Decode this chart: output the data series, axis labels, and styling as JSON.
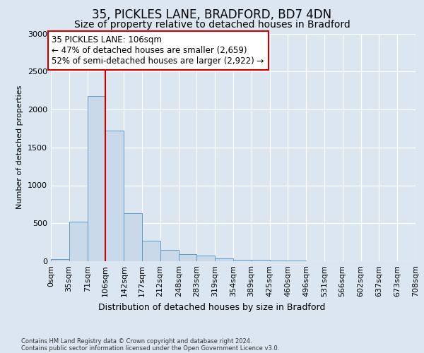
{
  "title1": "35, PICKLES LANE, BRADFORD, BD7 4DN",
  "title2": "Size of property relative to detached houses in Bradford",
  "xlabel": "Distribution of detached houses by size in Bradford",
  "ylabel": "Number of detached properties",
  "footnote": "Contains HM Land Registry data © Crown copyright and database right 2024.\nContains public sector information licensed under the Open Government Licence v3.0.",
  "bin_edges": [
    0,
    35,
    71,
    106,
    142,
    177,
    212,
    248,
    283,
    319,
    354,
    389,
    425,
    460,
    496,
    531,
    566,
    602,
    637,
    673,
    708
  ],
  "bar_heights": [
    30,
    525,
    2175,
    1720,
    635,
    270,
    150,
    90,
    70,
    35,
    20,
    15,
    10,
    5,
    0,
    0,
    0,
    0,
    0,
    0
  ],
  "bar_color": "#c9d9ea",
  "bar_edge_color": "#5a9ec9",
  "vline_x": 106,
  "vline_color": "#cc0000",
  "annotation_text": "35 PICKLES LANE: 106sqm\n← 47% of detached houses are smaller (2,659)\n52% of semi-detached houses are larger (2,922) →",
  "annotation_box_color": "#ffffff",
  "annotation_box_edge": "#cc0000",
  "ylim": [
    0,
    3000
  ],
  "yticks": [
    0,
    500,
    1000,
    1500,
    2000,
    2500,
    3000
  ],
  "background_color": "#dce6f0",
  "plot_background": "#dce6f0",
  "grid_color": "#ffffff",
  "title1_fontsize": 12,
  "title2_fontsize": 10,
  "xlabel_fontsize": 9,
  "ylabel_fontsize": 8,
  "tick_fontsize": 8,
  "annotation_fontsize": 8.5,
  "footnote_fontsize": 6
}
